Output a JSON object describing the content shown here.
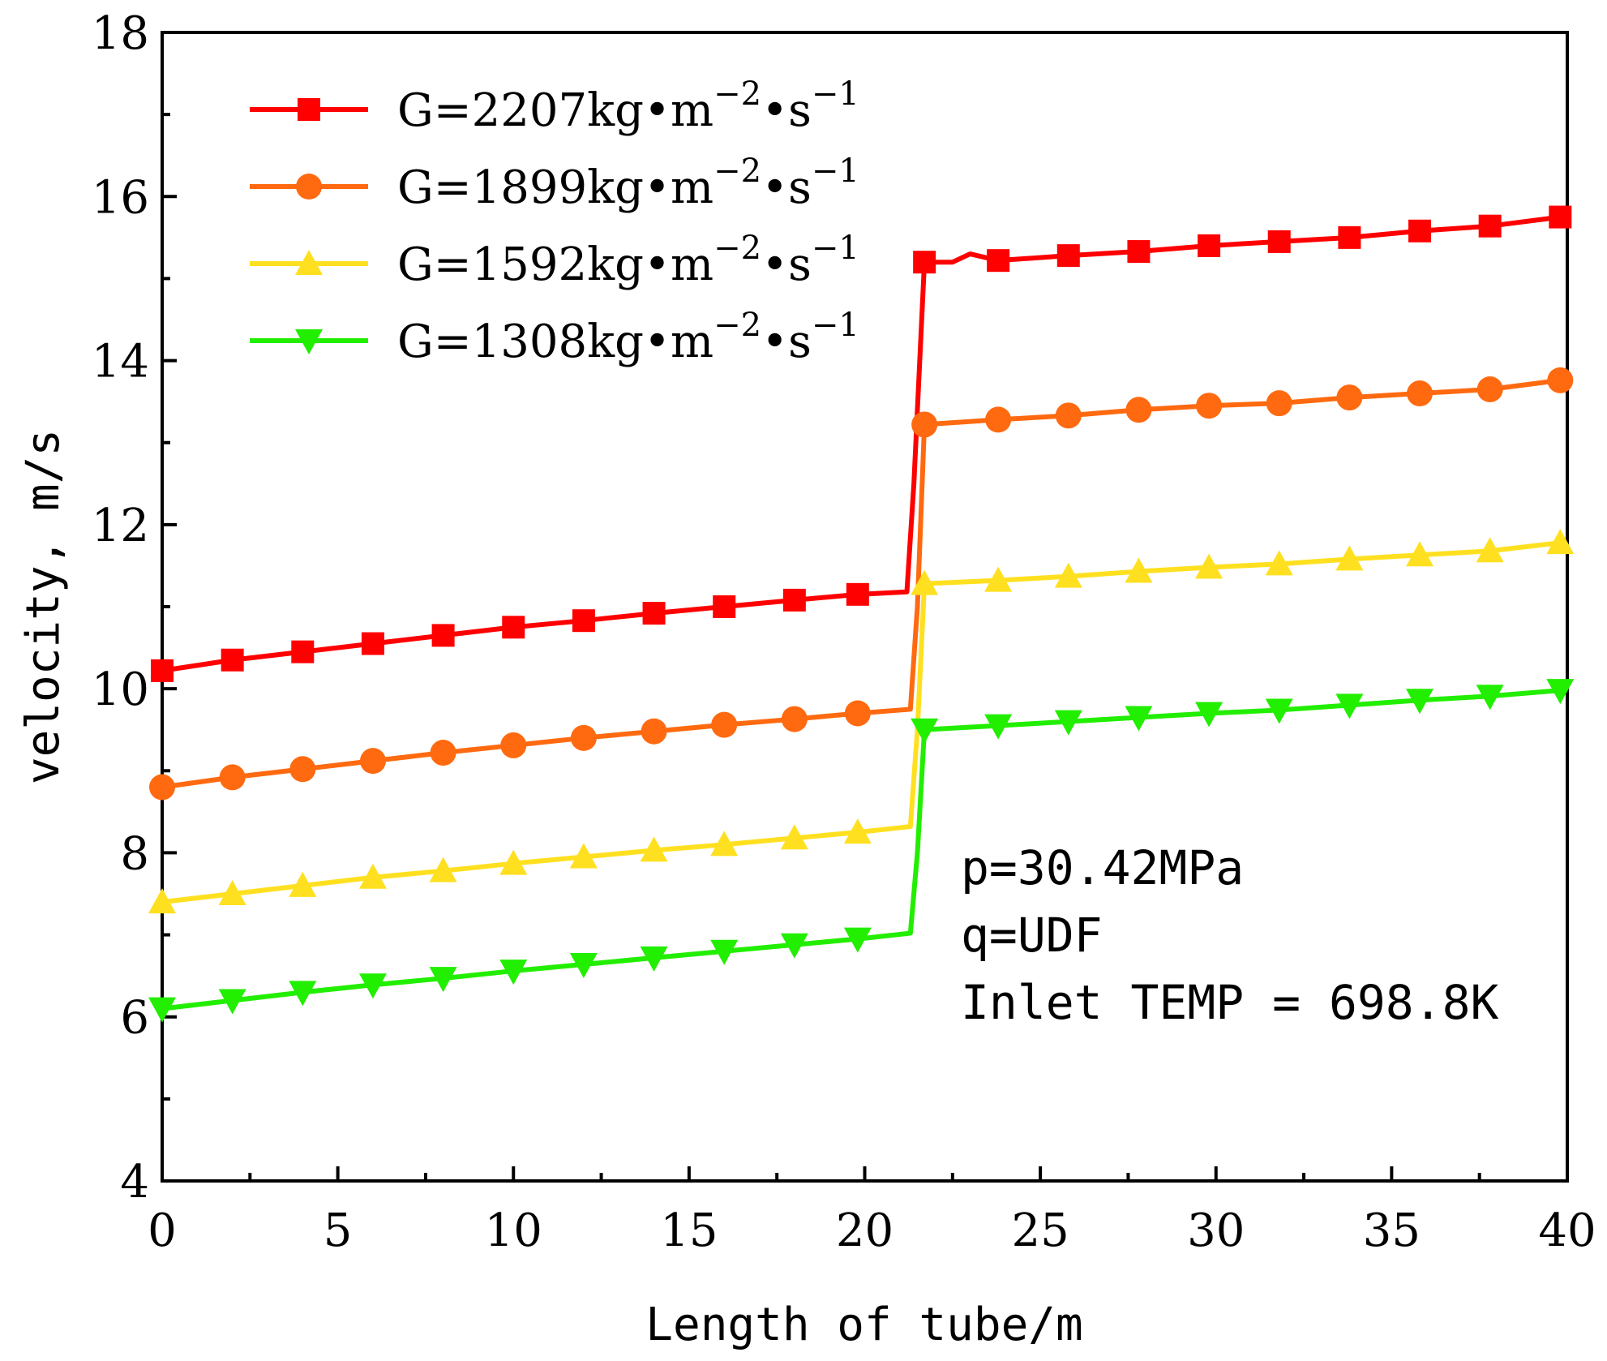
{
  "chart_data": {
    "type": "line",
    "title": "",
    "xlabel": "Length of tube/m",
    "ylabel": "velocity, m/s",
    "xlim": [
      0,
      40
    ],
    "ylim": [
      4,
      18
    ],
    "xticks": [
      "0",
      "5",
      "10",
      "15",
      "20",
      "25",
      "30",
      "35",
      "40"
    ],
    "yticks": [
      "4",
      "6",
      "8",
      "10",
      "12",
      "14",
      "16",
      "18"
    ],
    "legend_position": "top-left",
    "series": [
      {
        "name": "G=2207kg•m-2•s-1",
        "legend": {
          "base": "G=2207kg•m",
          "exp1": "−2",
          "mid": "•s",
          "exp2": "−1"
        },
        "color": "#ff0000",
        "marker": "square",
        "x": [
          0,
          2,
          4,
          6,
          8,
          10,
          12,
          14,
          16,
          18,
          19.8,
          21.2,
          21.4,
          21.7,
          22.5,
          23,
          23.8,
          25.8,
          27.8,
          29.8,
          31.8,
          33.8,
          35.8,
          37.8,
          39.8
        ],
        "y": [
          10.22,
          10.35,
          10.45,
          10.55,
          10.65,
          10.75,
          10.83,
          10.92,
          11.0,
          11.08,
          11.15,
          11.18,
          12.5,
          15.2,
          15.2,
          15.3,
          15.22,
          15.28,
          15.33,
          15.4,
          15.45,
          15.5,
          15.58,
          15.64,
          15.75
        ],
        "marker_x": [
          0,
          2,
          4,
          6,
          8,
          10,
          12,
          14,
          16,
          18,
          19.8,
          21.7,
          23.8,
          25.8,
          27.8,
          29.8,
          31.8,
          33.8,
          35.8,
          37.8,
          39.8
        ]
      },
      {
        "name": "G=1899kg•m-2•s-1",
        "legend": {
          "base": "G=1899kg•m",
          "exp1": "−2",
          "mid": "•s",
          "exp2": "−1"
        },
        "color": "#ff6a10",
        "marker": "circle",
        "x": [
          0,
          2,
          4,
          6,
          8,
          10,
          12,
          14,
          16,
          18,
          19.8,
          21.3,
          21.5,
          21.7,
          23.8,
          25.8,
          27.8,
          29.8,
          31.8,
          33.8,
          35.8,
          37.8,
          39.8
        ],
        "y": [
          8.8,
          8.92,
          9.02,
          9.12,
          9.22,
          9.31,
          9.4,
          9.48,
          9.56,
          9.63,
          9.7,
          9.75,
          11.0,
          13.22,
          13.28,
          13.33,
          13.4,
          13.45,
          13.48,
          13.55,
          13.6,
          13.65,
          13.76
        ],
        "marker_x": [
          0,
          2,
          4,
          6,
          8,
          10,
          12,
          14,
          16,
          18,
          19.8,
          21.7,
          23.8,
          25.8,
          27.8,
          29.8,
          31.8,
          33.8,
          35.8,
          37.8,
          39.8
        ]
      },
      {
        "name": "G=1592kg•m-2•s-1",
        "legend": {
          "base": "G=1592kg•m",
          "exp1": "−2",
          "mid": "•s",
          "exp2": "−1"
        },
        "color": "#ffe020",
        "marker": "triangle-up",
        "x": [
          0,
          2,
          4,
          6,
          8,
          10,
          12,
          14,
          16,
          18,
          19.8,
          21.3,
          21.5,
          21.7,
          23.8,
          25.8,
          27.8,
          29.8,
          31.8,
          33.8,
          35.8,
          37.8,
          39.8
        ],
        "y": [
          7.4,
          7.5,
          7.6,
          7.7,
          7.78,
          7.87,
          7.95,
          8.03,
          8.1,
          8.18,
          8.25,
          8.32,
          9.5,
          11.28,
          11.32,
          11.37,
          11.43,
          11.48,
          11.52,
          11.58,
          11.63,
          11.68,
          11.78
        ],
        "marker_x": [
          0,
          2,
          4,
          6,
          8,
          10,
          12,
          14,
          16,
          18,
          19.8,
          21.7,
          23.8,
          25.8,
          27.8,
          29.8,
          31.8,
          33.8,
          35.8,
          37.8,
          39.8
        ]
      },
      {
        "name": "G=1308kg•m-2•s-1",
        "legend": {
          "base": "G=1308kg•m",
          "exp1": "−2",
          "mid": "•s",
          "exp2": "−1"
        },
        "color": "#22ee00",
        "marker": "triangle-down",
        "x": [
          0,
          2,
          4,
          6,
          8,
          10,
          12,
          14,
          16,
          18,
          19.8,
          21.3,
          21.5,
          21.7,
          23.8,
          25.8,
          27.8,
          29.8,
          31.8,
          33.8,
          35.8,
          37.8,
          39.8
        ],
        "y": [
          6.1,
          6.2,
          6.3,
          6.39,
          6.47,
          6.56,
          6.64,
          6.72,
          6.8,
          6.88,
          6.95,
          7.02,
          8.0,
          9.5,
          9.55,
          9.6,
          9.65,
          9.7,
          9.74,
          9.8,
          9.86,
          9.91,
          9.98
        ],
        "marker_x": [
          0,
          2,
          4,
          6,
          8,
          10,
          12,
          14,
          16,
          18,
          19.8,
          21.7,
          23.8,
          25.8,
          27.8,
          29.8,
          31.8,
          33.8,
          35.8,
          37.8,
          39.8
        ]
      }
    ],
    "annotations": [
      "p=30.42MPa",
      "q=UDF",
      "Inlet TEMP = 698.8K"
    ]
  }
}
